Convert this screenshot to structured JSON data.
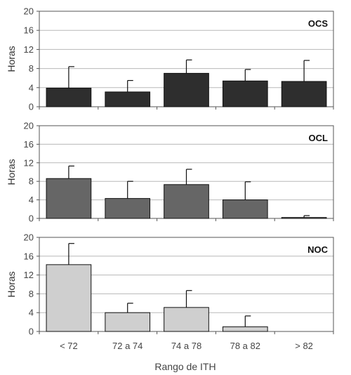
{
  "chart_data": [
    {
      "type": "bar",
      "title": "OCS",
      "ylabel": "Horas",
      "ylim": [
        0,
        20
      ],
      "yticks": [
        0,
        4,
        8,
        12,
        16,
        20
      ],
      "categories": [
        "< 72",
        "72 a 74",
        "74 a 78",
        "78 a 82",
        "> 82"
      ],
      "values": [
        3.9,
        3.1,
        7.0,
        5.4,
        5.3
      ],
      "error_upper": [
        8.4,
        5.5,
        9.8,
        7.8,
        9.7
      ],
      "bar_color": "#2e2e2e",
      "grid": true
    },
    {
      "type": "bar",
      "title": "OCL",
      "ylabel": "Horas",
      "ylim": [
        0,
        20
      ],
      "yticks": [
        0,
        4,
        8,
        12,
        16,
        20
      ],
      "categories": [
        "< 72",
        "72 a 74",
        "74 a 78",
        "78 a 82",
        "> 82"
      ],
      "values": [
        8.6,
        4.3,
        7.3,
        4.0,
        0.2
      ],
      "error_upper": [
        11.3,
        8.0,
        10.6,
        7.9,
        0.6
      ],
      "bar_color": "#666666",
      "grid": true
    },
    {
      "type": "bar",
      "title": "NOC",
      "ylabel": "Horas",
      "ylim": [
        0,
        20
      ],
      "yticks": [
        0,
        4,
        8,
        12,
        16,
        20
      ],
      "categories": [
        "< 72",
        "72 a 74",
        "74 a 78",
        "78 a 82",
        "> 82"
      ],
      "values": [
        14.2,
        4.0,
        5.1,
        1.0,
        0.0
      ],
      "error_upper": [
        18.7,
        6.0,
        8.7,
        3.3,
        0.0
      ],
      "bar_color": "#cfcfcf",
      "grid": true
    }
  ],
  "xaxis": {
    "categories": [
      "< 72",
      "72 a 74",
      "74 a 78",
      "78 a 82",
      "> 82"
    ],
    "label": "Rango de ITH"
  }
}
